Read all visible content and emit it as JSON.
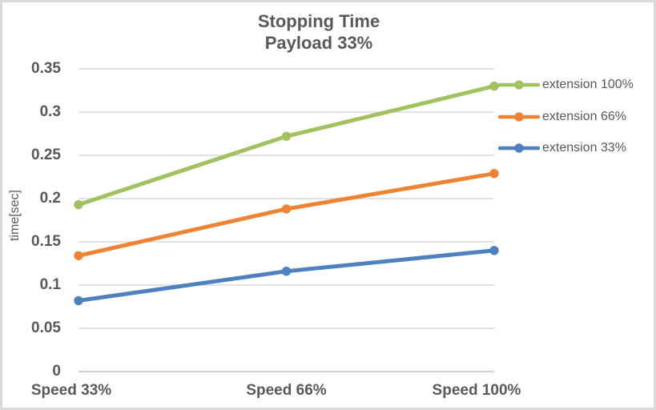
{
  "window": {
    "background": "#ffffff",
    "border_color": "#d9d9d9"
  },
  "chart_data": {
    "type": "line",
    "title": "Stopping Time",
    "subtitle": "Payload 33%",
    "xlabel": "",
    "ylabel": "time[sec]",
    "categories": [
      "Speed 33%",
      "Speed 66%",
      "Speed 100%"
    ],
    "series": [
      {
        "name": "extension 100%",
        "color": "#a2c15f",
        "values": [
          0.193,
          0.272,
          0.33
        ]
      },
      {
        "name": "extension 66%",
        "color": "#ee8433",
        "values": [
          0.134,
          0.188,
          0.229
        ]
      },
      {
        "name": "extension 33%",
        "color": "#4e81bd",
        "values": [
          0.082,
          0.116,
          0.14
        ]
      }
    ],
    "ylim": [
      0,
      0.35
    ],
    "ytick_step": 0.05,
    "ytick_labels": [
      "0",
      "0.05",
      "0.1",
      "0.15",
      "0.2",
      "0.25",
      "0.3",
      "0.35"
    ],
    "grid": true,
    "legend_position": "right",
    "style": {
      "text_color": "#595959",
      "gridline_color": "#d9d9d9",
      "axis_line_color": "#bfbfbf"
    }
  }
}
